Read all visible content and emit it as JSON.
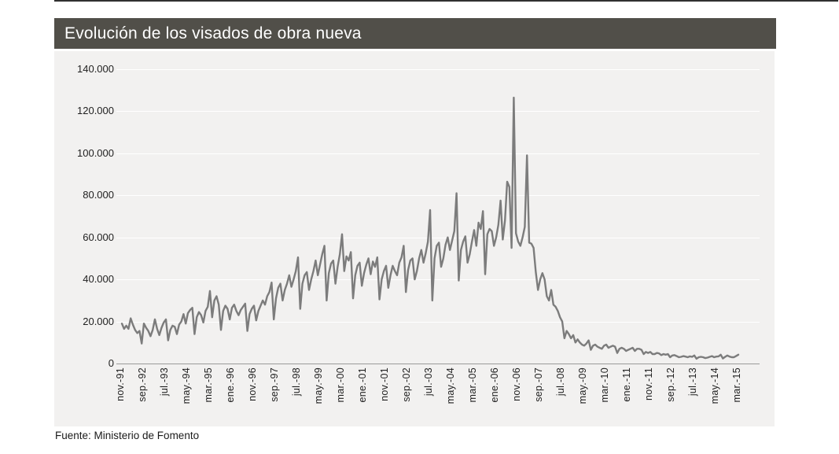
{
  "title": "Evolución de los visados de obra nueva",
  "source": "Fuente: Ministerio de Fomento",
  "colors": {
    "title_bar_bg": "#514F49",
    "title_text": "#FFFFFF",
    "panel_bg": "#F2F1F0",
    "line": "#7C7C7C",
    "grid": "#FFFFFF",
    "axis": "#9A9A9A",
    "tick_text": "#1F1F1F"
  },
  "chart_data": {
    "type": "line",
    "title": "Evolución de los visados de obra nueva",
    "xlabel": "",
    "ylabel": "",
    "ylim": [
      0,
      140000
    ],
    "grid": true,
    "legend": false,
    "frequency": "monthly",
    "start": "nov-1991",
    "end": "mar-2015",
    "y_tick_labels": [
      "140.000",
      "120.000",
      "100.000",
      "80.000",
      "60.000",
      "40.000",
      "20.000",
      "0"
    ],
    "x_tick_labels": [
      "nov.-91",
      "sep.-92",
      "jul.-93",
      "may.-94",
      "mar.-95",
      "ene.-96",
      "nov.-96",
      "sep.-97",
      "jul.-98",
      "may.-99",
      "mar.-00",
      "ene.-01",
      "nov.-01",
      "sep.-02",
      "jul.-03",
      "may.-04",
      "mar.-05",
      "ene.-06",
      "nov.-06",
      "sep.-07",
      "jul.-08",
      "may.-09",
      "mar.-10",
      "ene.-11",
      "nov.-11",
      "sep.-12",
      "jul.-13",
      "may.-14",
      "mar.-15"
    ],
    "x_tick_every_n_months": 10,
    "values": [
      19000,
      16500,
      18000,
      16500,
      21500,
      18500,
      16000,
      14500,
      15500,
      9500,
      19000,
      17000,
      15500,
      13000,
      16000,
      21000,
      16500,
      13500,
      17000,
      19500,
      21000,
      11000,
      16000,
      18000,
      17500,
      14000,
      18500,
      20000,
      23500,
      19000,
      24000,
      25500,
      26500,
      14000,
      22000,
      24500,
      23000,
      19500,
      25000,
      27000,
      34500,
      22000,
      30000,
      32000,
      28000,
      16000,
      25000,
      27500,
      26000,
      21000,
      26500,
      28000,
      25000,
      23000,
      25500,
      27000,
      28500,
      15500,
      23500,
      26000,
      27500,
      20500,
      25000,
      27500,
      30000,
      28000,
      32000,
      34000,
      38500,
      21000,
      31000,
      36000,
      38000,
      30000,
      35000,
      38000,
      42000,
      36500,
      40000,
      44000,
      50500,
      26000,
      38000,
      42000,
      43500,
      35000,
      40000,
      44000,
      49000,
      42000,
      47000,
      52000,
      56000,
      30000,
      43000,
      47500,
      49000,
      38000,
      46000,
      52000,
      61500,
      44000,
      51000,
      49000,
      53000,
      31000,
      42000,
      46500,
      48000,
      37000,
      43000,
      47000,
      50000,
      42500,
      48500,
      46000,
      50500,
      30500,
      40000,
      44000,
      46500,
      36000,
      42000,
      46500,
      44000,
      42000,
      48000,
      50500,
      56000,
      34000,
      44500,
      49000,
      50000,
      40000,
      44000,
      50000,
      54000,
      48000,
      52500,
      58000,
      73000,
      30000,
      50000,
      56000,
      57500,
      46000,
      50000,
      56500,
      60000,
      54000,
      58500,
      63000,
      81000,
      39500,
      54000,
      58000,
      60500,
      48000,
      52000,
      58000,
      63500,
      56000,
      67000,
      64000,
      72500,
      42500,
      61500,
      64000,
      63000,
      56000,
      60000,
      66000,
      77500,
      59000,
      68000,
      86500,
      84000,
      55000,
      126500,
      62000,
      58000,
      56000,
      60000,
      65000,
      99000,
      57500,
      57000,
      55000,
      43500,
      35000,
      40000,
      43000,
      40000,
      32000,
      30000,
      35000,
      28000,
      27000,
      25000,
      22000,
      20000,
      12000,
      15500,
      14000,
      12000,
      13500,
      10000,
      11500,
      10000,
      9000,
      8500,
      9500,
      11000,
      6500,
      8500,
      9000,
      8000,
      7500,
      7000,
      8500,
      9000,
      7500,
      8000,
      8500,
      8000,
      5000,
      7000,
      7500,
      7000,
      6000,
      6500,
      7000,
      7500,
      6000,
      7000,
      7000,
      6500,
      4500,
      5500,
      5000,
      5500,
      4500,
      4500,
      5000,
      4800,
      4000,
      4500,
      4200,
      4500,
      3000,
      3800,
      4000,
      3500,
      3000,
      3200,
      3500,
      3300,
      3000,
      3400,
      3200,
      3800,
      2300,
      3000,
      3200,
      3000,
      2600,
      2800,
      3200,
      3500,
      3000,
      3300,
      3400,
      4200,
      2400,
      3200,
      3800,
      3300,
      3000,
      3000,
      3600,
      4200
    ]
  }
}
